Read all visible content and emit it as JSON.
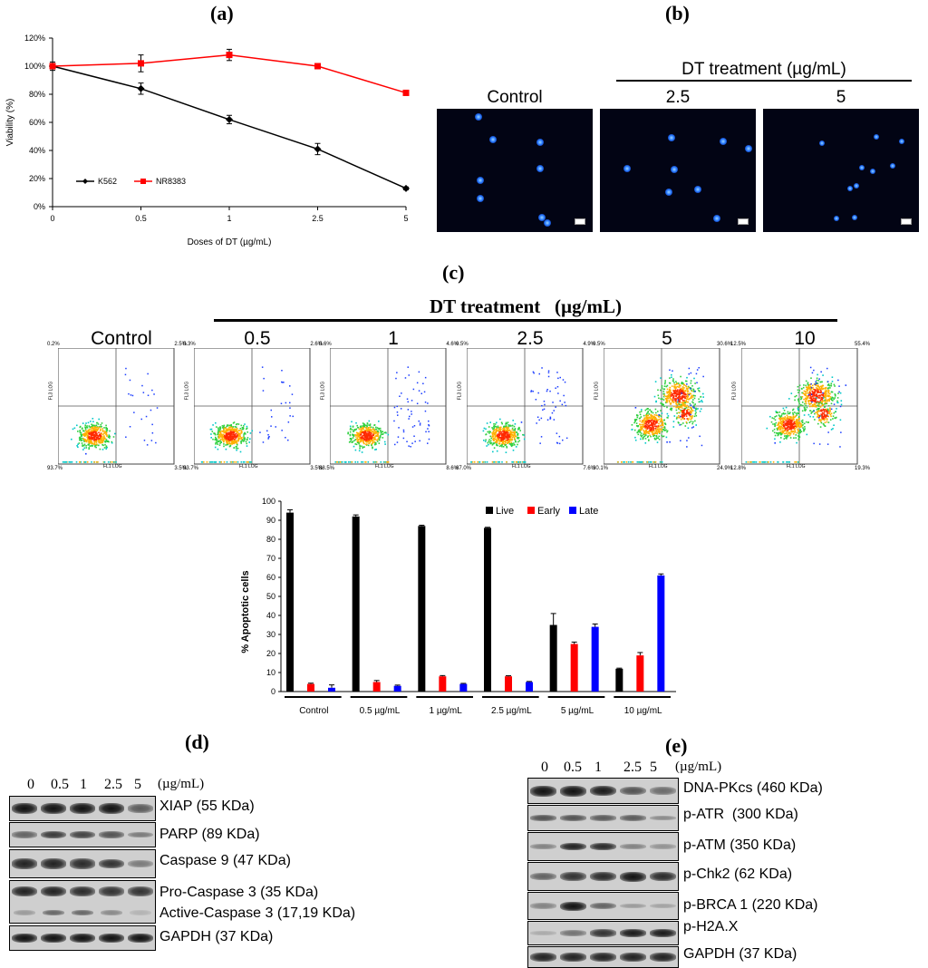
{
  "panels": {
    "a": "(a)",
    "b": "(b)",
    "c": "(c)",
    "d": "(d)",
    "e": "(e)"
  },
  "chart_data": [
    {
      "type": "line",
      "title": "",
      "xlabel": "Doses of DT (µg/mL)",
      "ylabel": "Viability (%)",
      "categories": [
        "0",
        "0.5",
        "1",
        "2.5",
        "5"
      ],
      "ylim": [
        0,
        120
      ],
      "yticks": [
        "0%",
        "20%",
        "40%",
        "60%",
        "80%",
        "100%",
        "120%"
      ],
      "legend": "bottom-left",
      "series": [
        {
          "name": "K562",
          "color": "#000000",
          "marker": "diamond",
          "values": [
            100,
            84,
            62,
            41,
            13
          ],
          "errors": [
            3,
            4,
            3,
            4,
            1
          ]
        },
        {
          "name": "NR8383",
          "color": "#ff0000",
          "marker": "square",
          "values": [
            100,
            102,
            108,
            100,
            81
          ],
          "errors": [
            2,
            6,
            4,
            1,
            1
          ]
        }
      ]
    },
    {
      "type": "bar",
      "title": "",
      "xlabel": "",
      "ylabel": "% Apoptotic cells",
      "categories": [
        "Control",
        "0.5 µg/mL",
        "1 µg/mL",
        "2.5 µg/mL",
        "5 µg/mL",
        "10 µg/mL"
      ],
      "ylim": [
        0,
        100
      ],
      "yticks": [
        "0",
        "10",
        "20",
        "30",
        "40",
        "50",
        "60",
        "70",
        "80",
        "90",
        "100"
      ],
      "legend": "top-right",
      "series": [
        {
          "name": "Live",
          "color": "#000000",
          "values": [
            94,
            92,
            87,
            86,
            35,
            12
          ],
          "errors": [
            1.5,
            0.8,
            0.4,
            0.3,
            6,
            0.3
          ]
        },
        {
          "name": "Early",
          "color": "#ff0000",
          "values": [
            4,
            5,
            8,
            8,
            25,
            19
          ],
          "errors": [
            0.4,
            0.8,
            0.4,
            0.3,
            1,
            1.5
          ]
        },
        {
          "name": "Late",
          "color": "#0000ff",
          "values": [
            2,
            3,
            4,
            5,
            34,
            61
          ],
          "errors": [
            1.5,
            0.4,
            0.3,
            0.3,
            1.5,
            0.8
          ]
        }
      ]
    }
  ],
  "panel_b": {
    "header": "DT treatment (µg/mL)",
    "images": [
      {
        "label": "Control"
      },
      {
        "label": "2.5"
      },
      {
        "label": "5"
      }
    ]
  },
  "panel_c": {
    "header": "DT treatment   (µg/mL)",
    "plots": [
      {
        "label": "Control",
        "tl": "0.2%",
        "tr": "2.5%",
        "bl": "93.7%",
        "br": "3.5%",
        "density": "low"
      },
      {
        "label": "0.5",
        "tl": "0.3%",
        "tr": "2.6%",
        "bl": "93.7%",
        "br": "3.5%",
        "density": "low"
      },
      {
        "label": "1",
        "tl": "0.6%",
        "tr": "4.6%",
        "bl": "88.5%",
        "br": "8.6%",
        "density": "low"
      },
      {
        "label": "2.5",
        "tl": "0.5%",
        "tr": "4.9%",
        "bl": "87.0%",
        "br": "7.6%",
        "density": "low"
      },
      {
        "label": "5",
        "tl": "0.5%",
        "tr": "30.6%",
        "bl": "30.1%",
        "br": "24.9%",
        "density": "high"
      },
      {
        "label": "10",
        "tl": "12.5%",
        "tr": "55.4%",
        "bl": "12.8%",
        "br": "19.3%",
        "density": "high"
      }
    ],
    "x_axis_label": "FL1 LOG",
    "y_axis_label": "FL3 LOG"
  },
  "panel_d": {
    "lanes": [
      "0",
      "0.5",
      "1",
      "2.5",
      "5"
    ],
    "unit": "(µg/mL)",
    "proteins": [
      "XIAP (55 KDa)",
      "PARP (89 KDa)",
      "Caspase 9 (47 KDa)",
      "Pro-Caspase 3 (35 KDa)",
      "Active-Caspase 3 (17,19 KDa)",
      "GAPDH (37 KDa)"
    ],
    "strips": [
      {
        "intensity": [
          1,
          1,
          1,
          1,
          0.55
        ]
      },
      {
        "intensity": [
          0.5,
          0.75,
          0.7,
          0.6,
          0.35
        ]
      },
      {
        "intensity": [
          0.9,
          0.9,
          0.85,
          0.8,
          0.35
        ]
      },
      {
        "intensity": [
          0.9,
          0.9,
          0.85,
          0.8,
          0.8
        ],
        "lower": [
          0.2,
          0.5,
          0.5,
          0.3,
          0.05
        ]
      },
      {
        "intensity": [
          1,
          1,
          1,
          1,
          1
        ]
      }
    ]
  },
  "panel_e": {
    "lanes": [
      "0",
      "0.5",
      "1",
      "2.5",
      "5"
    ],
    "unit": "(µg/mL)",
    "proteins": [
      "DNA-PKcs (460 KDa)",
      "p-ATR  (300 KDa)",
      "p-ATM (350 KDa)",
      "p-Chk2 (62 KDa)",
      "p-BRCA 1 (220 KDa)",
      "p-H2A.X",
      "GAPDH (37 KDa)"
    ],
    "strips": [
      {
        "intensity": [
          1,
          1,
          0.95,
          0.6,
          0.45
        ]
      },
      {
        "intensity": [
          0.6,
          0.6,
          0.55,
          0.55,
          0.25
        ]
      },
      {
        "intensity": [
          0.3,
          0.9,
          0.85,
          0.3,
          0.2
        ]
      },
      {
        "intensity": [
          0.5,
          0.8,
          0.85,
          1,
          0.85
        ]
      },
      {
        "intensity": [
          0.3,
          1,
          0.5,
          0.15,
          0.1
        ]
      },
      {
        "intensity": [
          0.05,
          0.4,
          0.8,
          0.95,
          0.95
        ]
      },
      {
        "intensity": [
          0.9,
          0.9,
          0.9,
          0.9,
          0.9
        ]
      }
    ]
  }
}
